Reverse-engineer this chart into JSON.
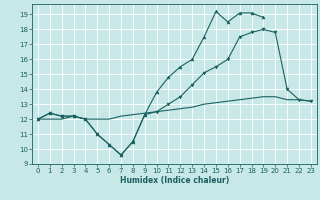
{
  "xlabel": "Humidex (Indice chaleur)",
  "bg_color": "#c8e8e8",
  "grid_color": "#ffffff",
  "line_color": "#1a6060",
  "xlim": [
    -0.5,
    23.5
  ],
  "ylim": [
    9,
    19.7
  ],
  "xticks": [
    0,
    1,
    2,
    3,
    4,
    5,
    6,
    7,
    8,
    9,
    10,
    11,
    12,
    13,
    14,
    15,
    16,
    17,
    18,
    19,
    20,
    21,
    22,
    23
  ],
  "yticks": [
    9,
    10,
    11,
    12,
    13,
    14,
    15,
    16,
    17,
    18,
    19
  ],
  "line1_x": [
    0,
    1,
    2,
    3,
    4,
    5,
    6,
    7,
    8,
    9,
    10,
    11,
    12,
    13,
    14,
    15,
    16,
    17,
    18,
    19,
    20,
    21,
    22,
    23
  ],
  "line1_y": [
    12,
    12.4,
    12.2,
    12.2,
    12.0,
    11.0,
    10.3,
    9.6,
    10.5,
    12.3,
    12.5,
    13.0,
    13.5,
    14.3,
    15.1,
    15.5,
    16.0,
    17.5,
    17.8,
    18.0,
    17.8,
    14.0,
    13.3,
    13.2
  ],
  "line2_x": [
    0,
    1,
    2,
    3,
    4,
    5,
    6,
    7,
    8,
    9,
    10,
    11,
    12,
    13,
    14,
    15,
    16,
    17,
    18,
    19,
    20,
    21,
    22,
    23
  ],
  "line2_y": [
    12,
    12.4,
    12.2,
    12.2,
    12.0,
    11.0,
    10.3,
    9.6,
    10.5,
    12.3,
    13.8,
    14.8,
    15.5,
    16.0,
    17.5,
    19.2,
    18.5,
    19.1,
    19.1,
    18.8,
    null,
    null,
    null,
    null
  ],
  "line3_x": [
    0,
    1,
    2,
    3,
    4,
    5,
    6,
    7,
    8,
    9,
    10,
    11,
    12,
    13,
    14,
    15,
    16,
    17,
    18,
    19,
    20,
    21,
    22,
    23
  ],
  "line3_y": [
    12,
    12.0,
    12.0,
    12.2,
    12.0,
    12.0,
    12.0,
    12.2,
    12.3,
    12.4,
    12.5,
    12.6,
    12.7,
    12.8,
    13.0,
    13.1,
    13.2,
    13.3,
    13.4,
    13.5,
    13.5,
    13.3,
    13.3,
    13.2
  ],
  "line1_marker": "v",
  "line2_marker": "^",
  "xlabel_fontsize": 5.5,
  "tick_fontsize": 5.0,
  "lw": 0.8
}
